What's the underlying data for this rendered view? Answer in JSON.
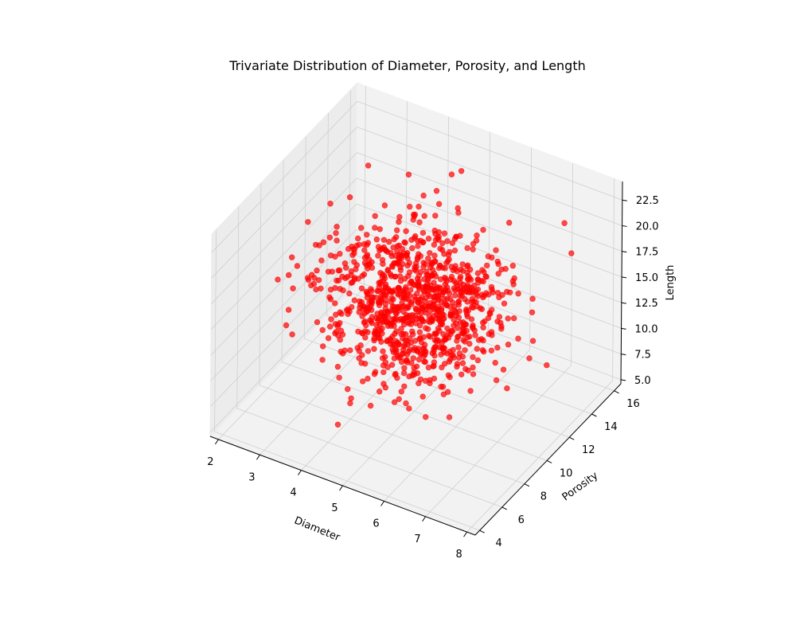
{
  "chart_data": {
    "type": "scatter",
    "projection": "3d",
    "title": "Trivariate Distribution of Diameter, Porosity, and Length",
    "xlabel": "Diameter",
    "ylabel": "Porosity",
    "zlabel": "Length",
    "xlim": [
      1.8,
      8.2
    ],
    "ylim": [
      3.6,
      16.6
    ],
    "zlim": [
      4.6,
      24.3
    ],
    "xticks": [
      "2",
      "3",
      "4",
      "5",
      "6",
      "7",
      "8"
    ],
    "yticks": [
      "4",
      "6",
      "8",
      "10",
      "12",
      "14",
      "16"
    ],
    "zticks": [
      "5.0",
      "7.5",
      "10.0",
      "12.5",
      "15.0",
      "17.5",
      "20.0",
      "22.5"
    ],
    "grid": true,
    "marker_color": "#ff0000",
    "marker_alpha": 0.7,
    "distribution": {
      "count": 1000,
      "x_mean": 5.0,
      "x_std": 1.0,
      "y_mean": 10.0,
      "y_std": 2.0,
      "z_mean": 15.0,
      "z_std": 3.0,
      "seed": 42
    }
  }
}
